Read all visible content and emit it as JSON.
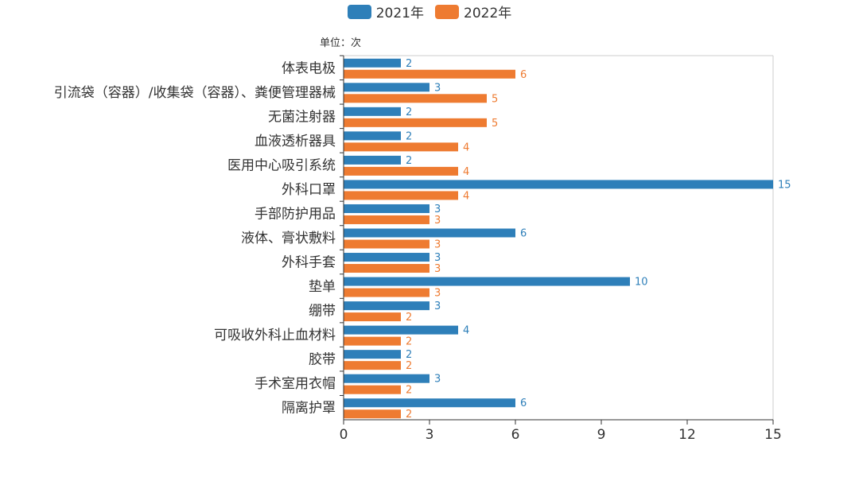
{
  "colors": {
    "2021": "#2e7fb9",
    "2022": "#ee7b31",
    "axis": "#333333",
    "frame": "#cccccc"
  },
  "unit_label": "单位：次",
  "chart_data": {
    "type": "bar",
    "orientation": "horizontal",
    "categories": [
      "体表电极",
      "引流袋（容器）/收集袋（容器）、粪便管理器械",
      "无菌注射器",
      "血液透析器具",
      "医用中心吸引系统",
      "外科口罩",
      "手部防护用品",
      "液体、膏状敷料",
      "外科手套",
      "垫单",
      "绷带",
      "可吸收外科止血材料",
      "胶带",
      "手术室用衣帽",
      "隔离护罩"
    ],
    "series": [
      {
        "name": "2021年",
        "values": [
          2,
          3,
          2,
          2,
          2,
          15,
          3,
          6,
          3,
          10,
          3,
          4,
          2,
          3,
          6
        ]
      },
      {
        "name": "2022年",
        "values": [
          6,
          5,
          5,
          4,
          4,
          4,
          3,
          3,
          3,
          3,
          2,
          2,
          2,
          2,
          2
        ]
      }
    ],
    "xlim": [
      0,
      15
    ],
    "xticks": [
      0,
      3,
      6,
      9,
      12,
      15
    ],
    "legend_position": "top-center",
    "grid": false
  }
}
